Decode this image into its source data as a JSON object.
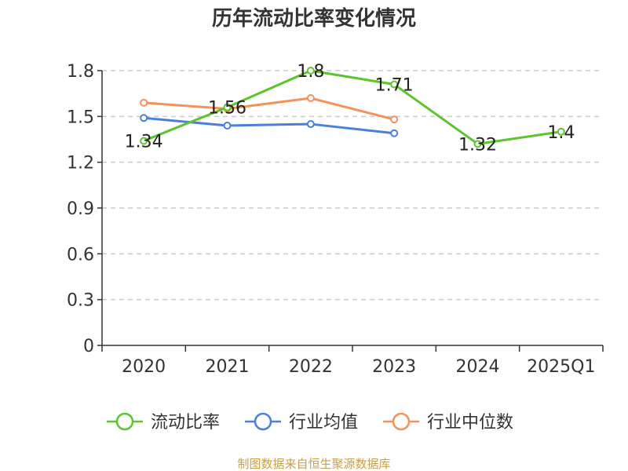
{
  "chart_data": {
    "type": "line",
    "title": "历年流动比率变化情况",
    "categories": [
      "2020",
      "2021",
      "2022",
      "2023",
      "2024",
      "2025Q1"
    ],
    "y_ticks": [
      "0",
      "0.3",
      "0.6",
      "0.9",
      "1.2",
      "1.5",
      "1.8"
    ],
    "ylim": [
      0,
      1.8
    ],
    "grid": true,
    "legend_position": "bottom",
    "series": [
      {
        "name": "流动比率",
        "color": "#5cc52b",
        "values": [
          1.34,
          1.56,
          1.8,
          1.71,
          1.32,
          1.4
        ],
        "labels": [
          "1.34",
          "1.56",
          "1.8",
          "1.71",
          "1.32",
          "1.4"
        ]
      },
      {
        "name": "行业均值",
        "color": "#4a7fdc",
        "values": [
          1.49,
          1.44,
          1.45,
          1.39,
          null,
          null
        ]
      },
      {
        "name": "行业中位数",
        "color": "#f5915a",
        "values": [
          1.59,
          1.55,
          1.62,
          1.48,
          null,
          null
        ]
      }
    ],
    "source": "制图数据来自恒生聚源数据库"
  }
}
